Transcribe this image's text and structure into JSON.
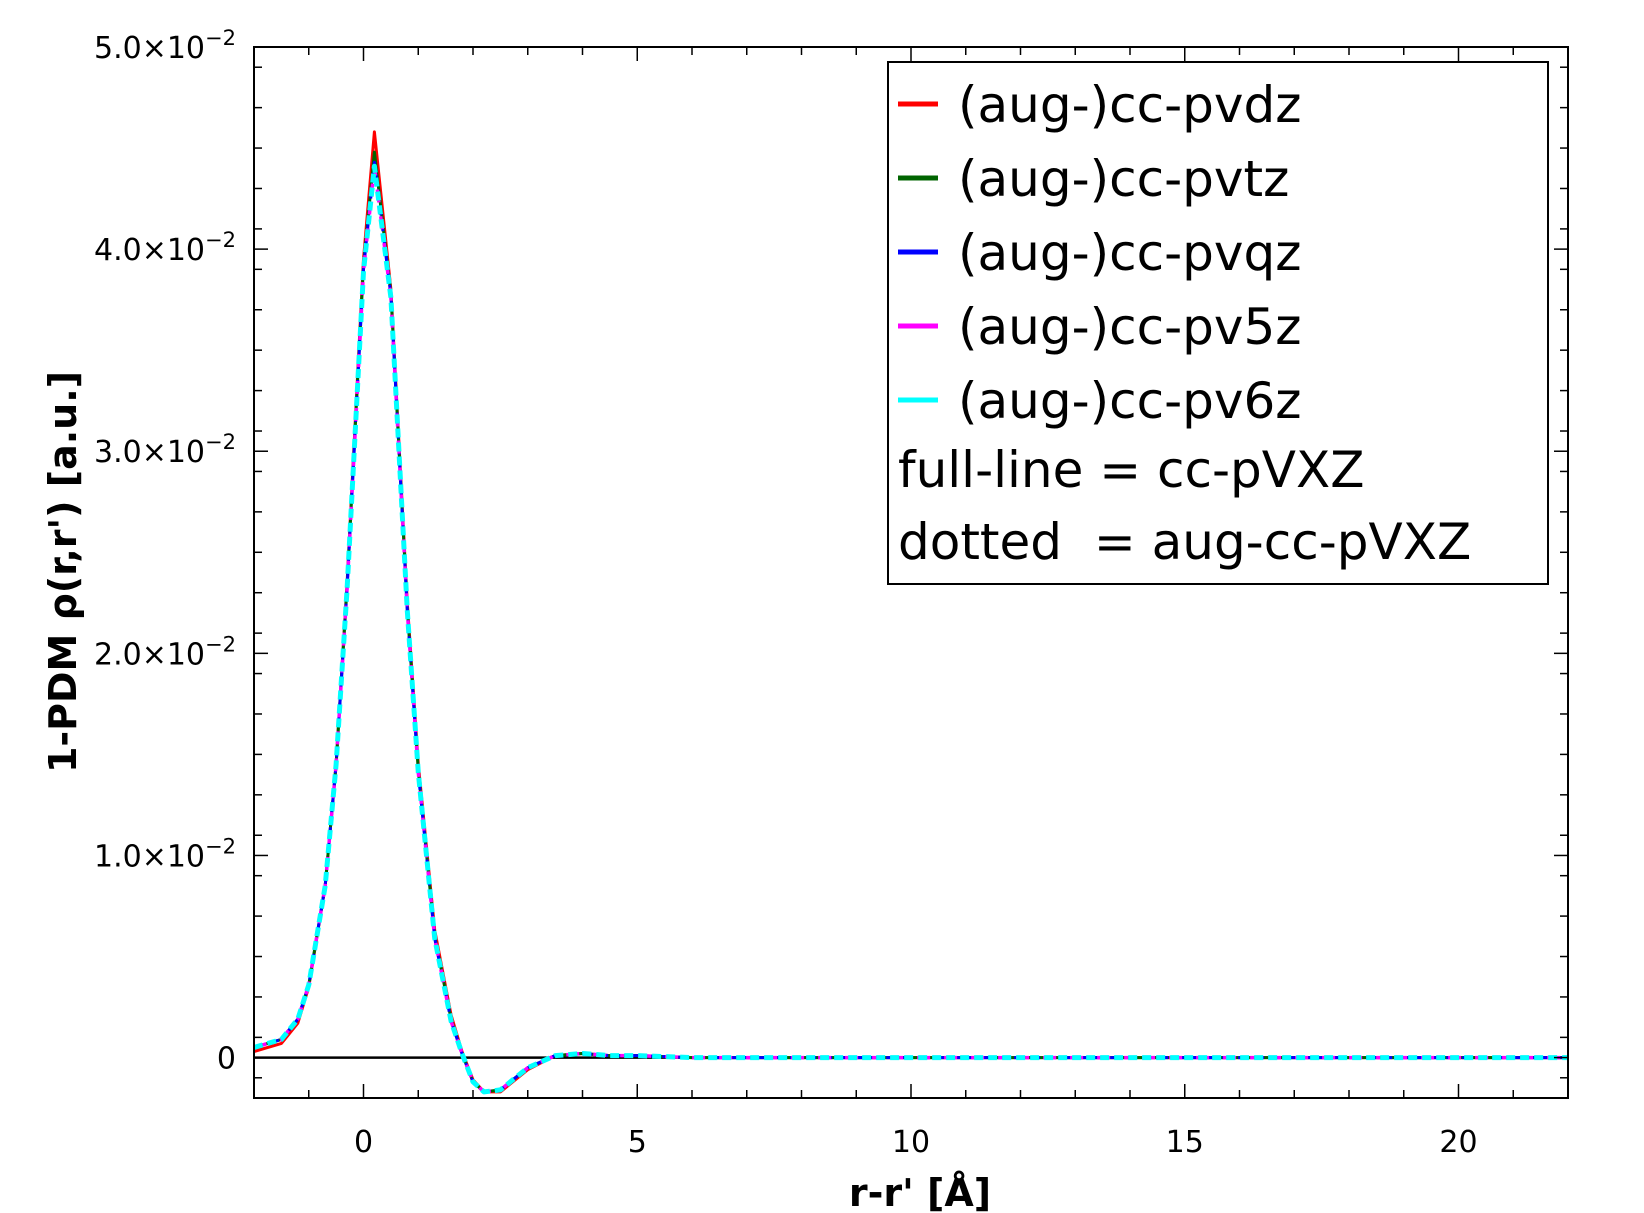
{
  "chart_data": {
    "type": "line",
    "xlabel": "r-r' [Å]",
    "ylabel": "1-PDM ρ(r,r') [a.u.]",
    "xlim": [
      -2,
      22
    ],
    "ylim": [
      -0.002,
      0.05
    ],
    "x_ticks": [
      0,
      5,
      10,
      15,
      20
    ],
    "x_tick_labels": [
      "0",
      "5",
      "10",
      "15",
      "20"
    ],
    "y_ticks": [
      0,
      0.01,
      0.02,
      0.03,
      0.04,
      0.05
    ],
    "y_tick_labels": [
      {
        "mantissa": "0",
        "exp": ""
      },
      {
        "mantissa": "1.0×10",
        "exp": "−2"
      },
      {
        "mantissa": "2.0×10",
        "exp": "−2"
      },
      {
        "mantissa": "3.0×10",
        "exp": "−2"
      },
      {
        "mantissa": "4.0×10",
        "exp": "−2"
      },
      {
        "mantissa": "5.0×10",
        "exp": "−2"
      }
    ],
    "grid": false,
    "legend_position": "top-right",
    "zero_line": true,
    "series": [
      {
        "name": "(aug-)cc-pvdz",
        "color": "#ff0000",
        "x": [
          -2,
          -1.5,
          -1.2,
          -1,
          -0.7,
          -0.5,
          -0.3,
          0,
          0.2,
          0.5,
          0.8,
          1.0,
          1.3,
          1.6,
          1.8,
          2.0,
          2.2,
          2.5,
          3.0,
          3.5,
          4.0,
          4.5,
          5.0,
          6,
          8,
          10,
          12,
          14,
          16,
          18,
          20,
          22
        ],
        "y": [
          0.0003,
          0.0007,
          0.0017,
          0.0035,
          0.0085,
          0.0145,
          0.0235,
          0.0395,
          0.0458,
          0.038,
          0.0225,
          0.0145,
          0.0063,
          0.0021,
          0.0003,
          -0.0011,
          -0.0017,
          -0.0017,
          -0.0006,
          0.0001,
          0.0002,
          0.0001,
          0.0001,
          0.0,
          0.0,
          0.0,
          0.0,
          0.0,
          0.0,
          0.0,
          0.0,
          0.0
        ]
      },
      {
        "name": "(aug-)cc-pvtz",
        "color": "#006400",
        "x": [
          -2,
          -1.5,
          -1.2,
          -1,
          -0.7,
          -0.5,
          -0.3,
          0,
          0.2,
          0.5,
          0.8,
          1.0,
          1.3,
          1.6,
          1.8,
          2.0,
          2.2,
          2.5,
          3.0,
          3.5,
          4.0,
          4.5,
          5.0,
          6,
          8,
          10,
          12,
          14,
          16,
          18,
          20,
          22
        ],
        "y": [
          0.0005,
          0.0009,
          0.0019,
          0.0036,
          0.0085,
          0.0145,
          0.0233,
          0.0392,
          0.0448,
          0.0378,
          0.0222,
          0.0142,
          0.006,
          0.0019,
          0.0002,
          -0.0012,
          -0.0017,
          -0.0016,
          -0.0005,
          0.0001,
          0.0002,
          0.0001,
          0.0001,
          0.0,
          0.0,
          0.0,
          0.0,
          0.0,
          0.0,
          0.0,
          0.0,
          0.0
        ]
      },
      {
        "name": "(aug-)cc-pvqz",
        "color": "#0000ff",
        "x": [
          -2,
          -1.5,
          -1.2,
          -1,
          -0.7,
          -0.5,
          -0.3,
          0,
          0.2,
          0.5,
          0.8,
          1.0,
          1.3,
          1.6,
          1.8,
          2.0,
          2.2,
          2.5,
          3.0,
          3.5,
          4.0,
          4.5,
          5.0,
          6,
          8,
          10,
          12,
          14,
          16,
          18,
          20,
          22
        ],
        "y": [
          0.0005,
          0.0009,
          0.0019,
          0.0036,
          0.0085,
          0.0145,
          0.0232,
          0.039,
          0.0443,
          0.0377,
          0.0221,
          0.0141,
          0.0059,
          0.0018,
          0.0002,
          -0.0012,
          -0.0017,
          -0.0016,
          -0.0005,
          0.0001,
          0.0002,
          0.0001,
          0.0001,
          0.0,
          0.0,
          0.0,
          0.0,
          0.0,
          0.0,
          0.0,
          0.0,
          0.0
        ]
      },
      {
        "name": "(aug-)cc-pv5z",
        "color": "#ff00ff",
        "x": [
          -2,
          -1.5,
          -1.2,
          -1,
          -0.7,
          -0.5,
          -0.3,
          0,
          0.2,
          0.5,
          0.8,
          1.0,
          1.3,
          1.6,
          1.8,
          2.0,
          2.2,
          2.5,
          3.0,
          3.5,
          4.0,
          4.5,
          5.0,
          6,
          8,
          10,
          12,
          14,
          16,
          18,
          20,
          22
        ],
        "y": [
          0.0005,
          0.0009,
          0.0019,
          0.0036,
          0.0085,
          0.0145,
          0.0232,
          0.0389,
          0.0441,
          0.0376,
          0.0221,
          0.0141,
          0.0059,
          0.0018,
          0.0002,
          -0.0012,
          -0.0017,
          -0.0016,
          -0.0005,
          0.0001,
          0.0002,
          0.0001,
          0.0001,
          0.0,
          0.0,
          0.0,
          0.0,
          0.0,
          0.0,
          0.0,
          0.0,
          0.0
        ]
      },
      {
        "name": "(aug-)cc-pv6z",
        "color": "#00ffff",
        "x": [
          -2,
          -1.5,
          -1.2,
          -1,
          -0.7,
          -0.5,
          -0.3,
          0,
          0.2,
          0.5,
          0.8,
          1.0,
          1.3,
          1.6,
          1.8,
          2.0,
          2.2,
          2.5,
          3.0,
          3.5,
          4.0,
          4.5,
          5.0,
          6,
          8,
          10,
          12,
          14,
          16,
          18,
          20,
          22
        ],
        "y": [
          0.0005,
          0.0009,
          0.0019,
          0.0036,
          0.0085,
          0.0145,
          0.0232,
          0.0389,
          0.0441,
          0.0376,
          0.0221,
          0.0141,
          0.0059,
          0.0018,
          0.0002,
          -0.0012,
          -0.0017,
          -0.0016,
          -0.0005,
          0.0001,
          0.0002,
          0.0001,
          0.0001,
          0.0,
          0.0,
          0.0,
          0.0,
          0.0,
          0.0,
          0.0,
          0.0,
          0.0
        ]
      }
    ],
    "legend_notes": [
      "full-line = cc-pVXZ",
      "dotted  = aug-cc-pVXZ"
    ]
  }
}
